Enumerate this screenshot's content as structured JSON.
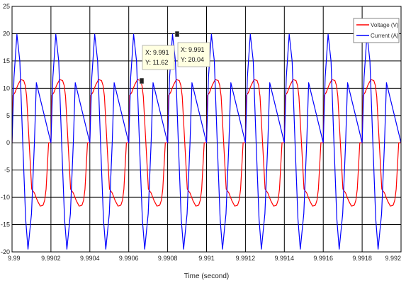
{
  "chart_data": {
    "type": "line",
    "title": "",
    "xlabel": "Time (second)",
    "ylabel": "",
    "xlim": [
      9.99,
      9.992
    ],
    "ylim": [
      -20,
      25
    ],
    "x_ticks": [
      9.99,
      9.9902,
      9.9904,
      9.9906,
      9.9908,
      9.991,
      9.9912,
      9.9914,
      9.9916,
      9.9918,
      9.992
    ],
    "x_tick_labels": [
      "9.99",
      "9.9902",
      "9.9904",
      "9.9906",
      "9.9908",
      "9.991",
      "9.9912",
      "9.9914",
      "9.9916",
      "9.9918",
      "9.992"
    ],
    "y_ticks": [
      -20,
      -15,
      -10,
      -5,
      0,
      5,
      10,
      15,
      20,
      25
    ],
    "y_tick_labels": [
      "-20",
      "-15",
      "-10",
      "-5",
      "0",
      "5",
      "10",
      "15",
      "20",
      "25"
    ],
    "grid": true,
    "legend_position": "top-right",
    "signal_period_s": 0.0002,
    "series": [
      {
        "name": "Voltage (V)",
        "color": "#ff0000",
        "points_one_cycle": [
          [
            0,
            0
          ],
          [
            5e-06,
            8.7
          ],
          [
            1.5e-05,
            9.2
          ],
          [
            3e-05,
            10.6
          ],
          [
            4.5e-05,
            11.6
          ],
          [
            6e-05,
            11.4
          ],
          [
            6.8e-05,
            10.5
          ],
          [
            7.5e-05,
            8.5
          ],
          [
            8.8e-05,
            0
          ],
          [
            0.000101,
            -8.5
          ],
          [
            0.000115,
            -9.2
          ],
          [
            0.00013,
            -10.6
          ],
          [
            0.000145,
            -11.6
          ],
          [
            0.00016,
            -11.4
          ],
          [
            0.000168,
            -10.5
          ],
          [
            0.000175,
            -8.5
          ],
          [
            0.000188,
            0
          ],
          [
            0.0002,
            0
          ]
        ]
      },
      {
        "name": "Current (A)",
        "color": "#0000ff",
        "points_one_cycle": [
          [
            0,
            0
          ],
          [
            1e-05,
            12
          ],
          [
            2.5e-05,
            19.9
          ],
          [
            4e-05,
            15
          ],
          [
            5.5e-05,
            0
          ],
          [
            7e-05,
            -14
          ],
          [
            8.2e-05,
            -19.5
          ],
          [
            0.0001,
            -13
          ],
          [
            0.000115,
            0
          ],
          [
            0.000125,
            11
          ],
          [
            0.0002,
            0
          ]
        ]
      }
    ],
    "annotations": [
      {
        "x": 9.991,
        "y": 11.62,
        "line1": "X: 9.991",
        "line2": "Y: 11.62",
        "series": "Voltage (V)"
      },
      {
        "x": 9.991,
        "y": 20.04,
        "line1": "X: 9.991",
        "line2": "Y: 20.04",
        "series": "Current (A)"
      }
    ]
  }
}
